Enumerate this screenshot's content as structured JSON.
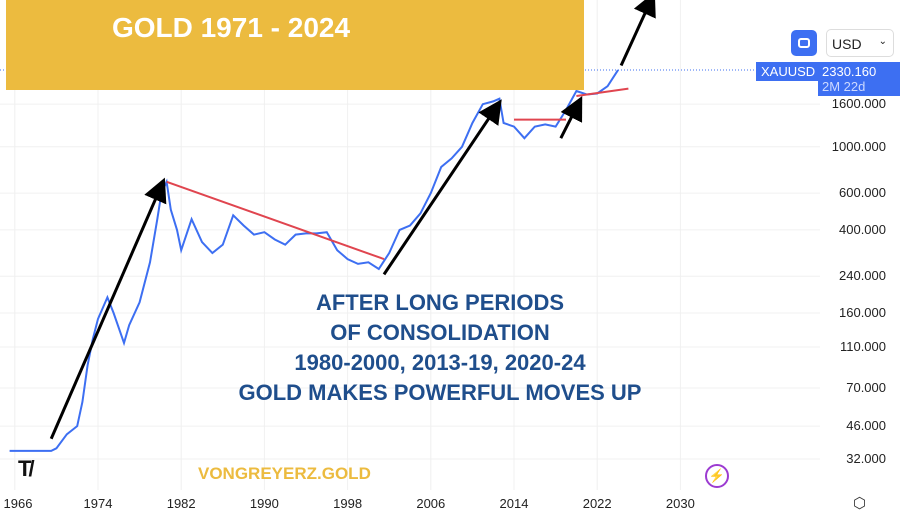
{
  "title": "GOLD 1971 - 2024",
  "symbol": "XAUUSD",
  "last_price": "2330.160",
  "countdown": "2M 22d",
  "currency": "USD",
  "watermark": "VONGREYERZ.GOLD",
  "logo": "TV",
  "message": [
    "AFTER LONG PERIODS",
    "OF CONSOLIDATION",
    "1980-2000, 2013-19, 2020-24",
    "GOLD MAKES POWERFUL MOVES UP"
  ],
  "colors": {
    "line": "#3d6ff2",
    "resistance": "#e0454f",
    "arrow": "#000000",
    "banner": "#ecbb3f",
    "text": "#1f4e8c"
  },
  "chart_data": {
    "type": "line",
    "title": "GOLD 1971 - 2024",
    "yscale": "log",
    "ylim": [
      28,
      3000
    ],
    "xlim": [
      1965.5,
      2034
    ],
    "yticks": [
      "1600.000",
      "1000.000",
      "600.000",
      "400.000",
      "240.000",
      "160.000",
      "110.000",
      "70.000",
      "46.000",
      "32.000"
    ],
    "xticks": [
      "1966",
      "1974",
      "1982",
      "1990",
      "1998",
      "2006",
      "2014",
      "2022",
      "2030"
    ],
    "series": [
      {
        "name": "XAUUSD",
        "x": [
          1965.5,
          1969.5,
          1970,
          1971,
          1972,
          1972.5,
          1973,
          1973.5,
          1974,
          1974.9,
          1975.5,
          1976.5,
          1977,
          1978,
          1979,
          1979.7,
          1980.1,
          1980.6,
          1981,
          1981.6,
          1982,
          1983,
          1984,
          1985,
          1986,
          1987,
          1988,
          1989,
          1990,
          1991,
          1992,
          1993,
          1994,
          1995,
          1996,
          1997,
          1998,
          1999,
          2000,
          2001,
          2002,
          2003,
          2004,
          2005,
          2006,
          2007,
          2008,
          2009,
          2010,
          2011,
          2012,
          2012.6,
          2013,
          2014,
          2015,
          2016,
          2017,
          2018,
          2019,
          2020,
          2021,
          2022,
          2023,
          2024
        ],
        "y": [
          35,
          35,
          36,
          42,
          46,
          60,
          90,
          120,
          150,
          190,
          160,
          115,
          140,
          180,
          280,
          450,
          600,
          680,
          500,
          400,
          320,
          450,
          350,
          310,
          340,
          470,
          420,
          380,
          390,
          360,
          340,
          380,
          385,
          385,
          390,
          320,
          290,
          275,
          280,
          260,
          310,
          400,
          420,
          480,
          600,
          800,
          880,
          1000,
          1300,
          1600,
          1650,
          1700,
          1300,
          1250,
          1100,
          1250,
          1280,
          1250,
          1500,
          1850,
          1780,
          1800,
          1950,
          2330
        ]
      }
    ],
    "annotations": {
      "resistance_lines": [
        {
          "x": [
            1980.6,
            2001.5
          ],
          "y": [
            680,
            290
          ]
        },
        {
          "x": [
            2014,
            2019
          ],
          "y": [
            1350,
            1350
          ]
        },
        {
          "x": [
            2020,
            2025
          ],
          "y": [
            1750,
            1900
          ]
        }
      ],
      "arrows": [
        {
          "x": [
            1969.5,
            1980.2
          ],
          "y": [
            40,
            670
          ]
        },
        {
          "x": [
            2001.5,
            2012.5
          ],
          "y": [
            245,
            1600
          ]
        },
        {
          "x": [
            2018.5,
            2020.3
          ],
          "y": [
            1100,
            1650
          ]
        },
        {
          "x": [
            2024.3,
            2027.3
          ],
          "y": [
            2450,
            5200
          ]
        }
      ]
    }
  }
}
